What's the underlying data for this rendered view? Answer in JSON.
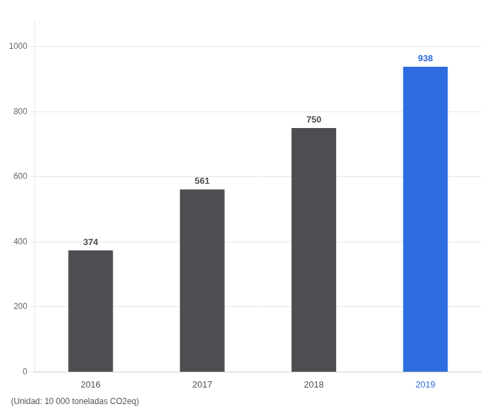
{
  "chart_data": {
    "type": "bar",
    "categories": [
      "2016",
      "2017",
      "2018",
      "2019"
    ],
    "values": [
      374,
      561,
      750,
      938
    ],
    "colors": [
      "#4d4d52",
      "#4d4d52",
      "#4d4d52",
      "#2d6de0"
    ],
    "ylim": [
      0,
      1080
    ],
    "yticks": [
      0,
      200,
      400,
      600,
      800,
      1000
    ],
    "grid": true,
    "data_labels": true,
    "annotations": [
      "(Unidad: 10 000 toneladas CO2eq)"
    ]
  }
}
